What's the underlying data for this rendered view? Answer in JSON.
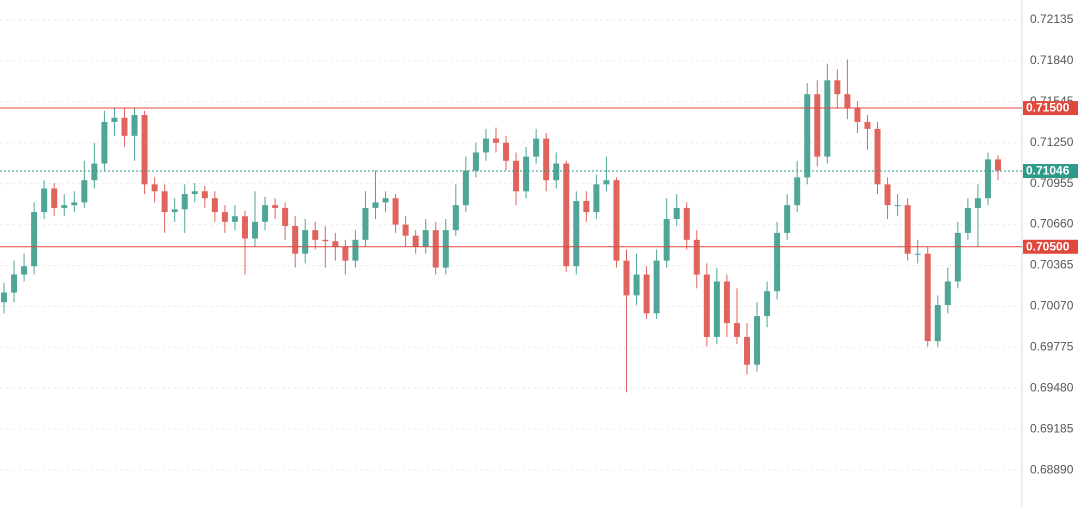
{
  "chart_data": {
    "type": "candlestick",
    "colors": {
      "up": "#4fa597",
      "down": "#e0635d"
    },
    "open": [
      0.701,
      0.7017,
      0.703,
      0.7036,
      0.7075,
      0.7092,
      0.7078,
      0.708,
      0.7082,
      0.7098,
      0.711,
      0.714,
      0.7143,
      0.713,
      0.7145,
      0.7095,
      0.709,
      0.7075,
      0.7077,
      0.7088,
      0.709,
      0.7085,
      0.7075,
      0.7068,
      0.7072,
      0.7056,
      0.7068,
      0.708,
      0.7078,
      0.7065,
      0.7045,
      0.7062,
      0.7055,
      0.7054,
      0.705,
      0.704,
      0.7055,
      0.7078,
      0.7082,
      0.7085,
      0.7066,
      0.7058,
      0.705,
      0.7062,
      0.7035,
      0.7062,
      0.708,
      0.7105,
      0.7118,
      0.7128,
      0.7125,
      0.7112,
      0.709,
      0.7115,
      0.7128,
      0.7098,
      0.711,
      0.7036,
      0.7083,
      0.7075,
      0.7095,
      0.7098,
      0.704,
      0.7015,
      0.703,
      0.7002,
      0.704,
      0.707,
      0.7078,
      0.7055,
      0.703,
      0.6985,
      0.7025,
      0.6995,
      0.6985,
      0.6965,
      0.7,
      0.7018,
      0.706,
      0.708,
      0.71,
      0.716,
      0.7115,
      0.717,
      0.716,
      0.715,
      0.714,
      0.7135,
      0.7095,
      0.708,
      0.708,
      0.7045,
      0.7045,
      0.6982,
      0.7008,
      0.7025,
      0.706,
      0.7078,
      0.7085,
      0.7113
    ],
    "high": [
      0.7024,
      0.704,
      0.7045,
      0.7082,
      0.7098,
      0.7096,
      0.7088,
      0.709,
      0.7112,
      0.7125,
      0.7148,
      0.715,
      0.715,
      0.715,
      0.7148,
      0.71,
      0.7095,
      0.7085,
      0.7095,
      0.7096,
      0.7094,
      0.709,
      0.708,
      0.708,
      0.7076,
      0.709,
      0.7086,
      0.7085,
      0.7082,
      0.7072,
      0.707,
      0.7068,
      0.7065,
      0.706,
      0.7055,
      0.7062,
      0.709,
      0.7105,
      0.709,
      0.7088,
      0.7072,
      0.7062,
      0.707,
      0.7068,
      0.707,
      0.7095,
      0.7115,
      0.7125,
      0.7135,
      0.7136,
      0.713,
      0.7118,
      0.7122,
      0.7135,
      0.7132,
      0.7118,
      0.7112,
      0.709,
      0.709,
      0.7102,
      0.7115,
      0.71,
      0.7048,
      0.7045,
      0.7036,
      0.7048,
      0.7085,
      0.7088,
      0.7082,
      0.7062,
      0.7038,
      0.7035,
      0.703,
      0.702,
      0.6995,
      0.701,
      0.7025,
      0.7068,
      0.7088,
      0.7112,
      0.7168,
      0.717,
      0.7182,
      0.7178,
      0.7185,
      0.7155,
      0.7145,
      0.714,
      0.71,
      0.7088,
      0.7085,
      0.7055,
      0.705,
      0.7015,
      0.7035,
      0.7068,
      0.7085,
      0.7095,
      0.7118,
      0.7116
    ],
    "low": [
      0.7002,
      0.701,
      0.7025,
      0.703,
      0.707,
      0.7072,
      0.7072,
      0.7075,
      0.7078,
      0.7092,
      0.7105,
      0.713,
      0.7122,
      0.7112,
      0.7088,
      0.7082,
      0.706,
      0.7068,
      0.706,
      0.7082,
      0.7078,
      0.7068,
      0.706,
      0.7062,
      0.703,
      0.705,
      0.7062,
      0.707,
      0.7055,
      0.7035,
      0.7038,
      0.7048,
      0.7035,
      0.704,
      0.703,
      0.7035,
      0.705,
      0.707,
      0.7075,
      0.706,
      0.705,
      0.7045,
      0.7045,
      0.703,
      0.703,
      0.7058,
      0.7075,
      0.71,
      0.7112,
      0.7118,
      0.7105,
      0.708,
      0.7085,
      0.711,
      0.709,
      0.7092,
      0.7032,
      0.703,
      0.7068,
      0.707,
      0.709,
      0.7035,
      0.6945,
      0.7008,
      0.6998,
      0.6998,
      0.7035,
      0.7065,
      0.7048,
      0.702,
      0.6978,
      0.698,
      0.6985,
      0.698,
      0.6958,
      0.696,
      0.6992,
      0.7012,
      0.7055,
      0.7075,
      0.7095,
      0.7108,
      0.711,
      0.715,
      0.7142,
      0.7132,
      0.712,
      0.7088,
      0.707,
      0.7072,
      0.704,
      0.7038,
      0.6978,
      0.6978,
      0.7002,
      0.702,
      0.7055,
      0.705,
      0.708,
      0.7098
    ],
    "close": [
      0.7017,
      0.703,
      0.7036,
      0.7075,
      0.7092,
      0.7078,
      0.708,
      0.7082,
      0.7098,
      0.711,
      0.714,
      0.7143,
      0.713,
      0.7145,
      0.7095,
      0.709,
      0.7075,
      0.7077,
      0.7088,
      0.709,
      0.7085,
      0.7075,
      0.7068,
      0.7072,
      0.7056,
      0.7068,
      0.708,
      0.7078,
      0.7065,
      0.7045,
      0.7062,
      0.7055,
      0.7054,
      0.705,
      0.704,
      0.7055,
      0.7078,
      0.7082,
      0.7085,
      0.7066,
      0.7058,
      0.705,
      0.7062,
      0.7035,
      0.7062,
      0.708,
      0.7105,
      0.7118,
      0.7128,
      0.7125,
      0.7112,
      0.709,
      0.7115,
      0.7128,
      0.7098,
      0.711,
      0.7036,
      0.7083,
      0.7075,
      0.7095,
      0.7098,
      0.704,
      0.7015,
      0.703,
      0.7002,
      0.704,
      0.707,
      0.7078,
      0.7055,
      0.703,
      0.6985,
      0.7025,
      0.6995,
      0.6985,
      0.6965,
      0.7,
      0.7018,
      0.706,
      0.708,
      0.71,
      0.716,
      0.7115,
      0.717,
      0.716,
      0.715,
      0.714,
      0.7135,
      0.7095,
      0.708,
      0.708,
      0.7045,
      0.7045,
      0.6982,
      0.7008,
      0.7025,
      0.706,
      0.7078,
      0.7085,
      0.7113,
      0.7105
    ],
    "ylim": [
      0.68624,
      0.72279
    ],
    "yticks": [
      0.72135,
      {
        "value": 0.7184,
        "label": "0.71840"
      },
      0.71545,
      {
        "value": 0.7125,
        "label": "0.71250"
      },
      0.70955,
      {
        "value": 0.7066,
        "label": "0.70660"
      },
      0.70365,
      {
        "value": 0.7007,
        "label": "0.70070"
      },
      {
        "value": 0.69775,
        "label": "0.69775"
      },
      {
        "value": 0.6948,
        "label": "0.69480"
      },
      0.69185,
      {
        "value": 0.6889,
        "label": "0.68890"
      }
    ],
    "grid": true,
    "levels": [
      {
        "value": 0.715,
        "label": "0.71500",
        "color": "#e0483d"
      },
      {
        "value": 0.705,
        "label": "0.70500",
        "color": "#e0483d"
      }
    ],
    "current_price": {
      "value": 0.71046,
      "label": "0.71046",
      "color": "#2f9a8a"
    }
  }
}
